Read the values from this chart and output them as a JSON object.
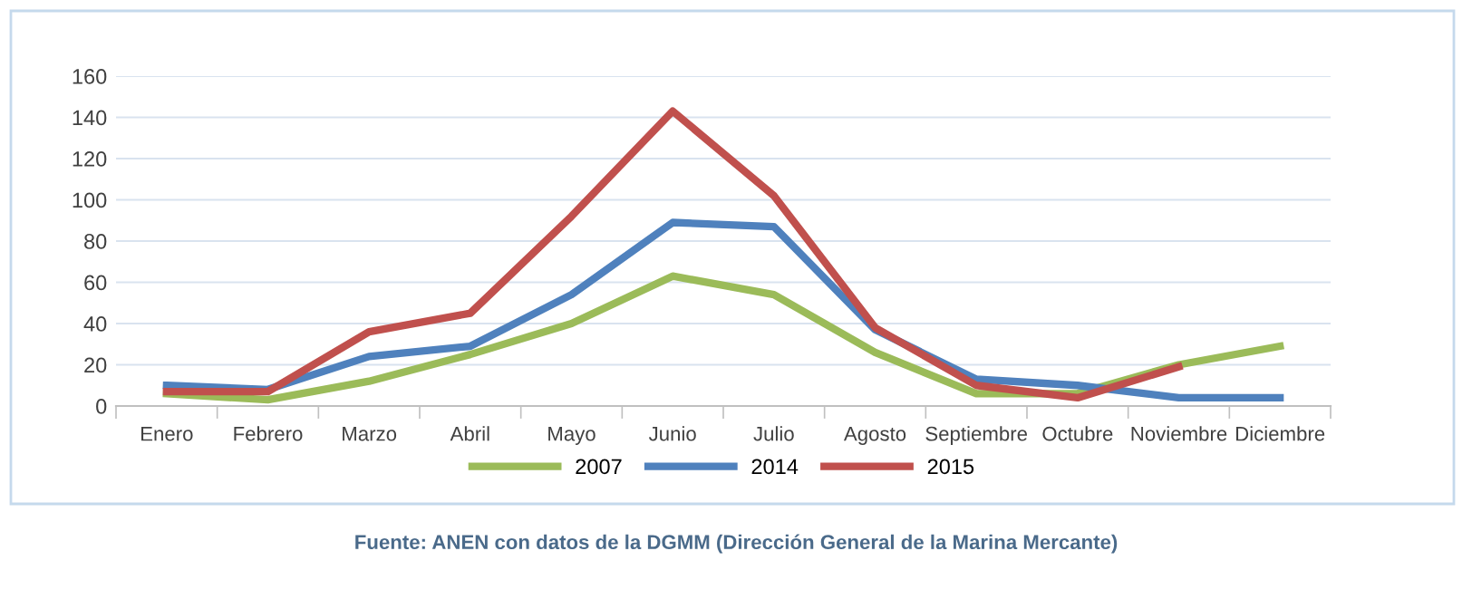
{
  "chart_data": {
    "type": "line",
    "categories": [
      "Enero",
      "Febrero",
      "Marzo",
      "Abril",
      "Mayo",
      "Junio",
      "Julio",
      "Agosto",
      "Septiembre",
      "Octubre",
      "Noviembre",
      "Diciembre"
    ],
    "series": [
      {
        "name": "2007",
        "color": "#9bbb59",
        "values": [
          6,
          3,
          12,
          25,
          40,
          63,
          54,
          26,
          6,
          6,
          20,
          29
        ]
      },
      {
        "name": "2014",
        "color": "#4f81bd",
        "values": [
          10,
          8,
          24,
          29,
          54,
          89,
          87,
          37,
          13,
          10,
          4,
          4
        ]
      },
      {
        "name": "2015",
        "color": "#c0504d",
        "values": [
          7,
          7,
          36,
          45,
          92,
          143,
          102,
          38,
          10,
          4,
          19,
          null
        ]
      }
    ],
    "ylim": [
      0,
      160
    ],
    "yticks": [
      0,
      20,
      40,
      60,
      80,
      100,
      120,
      140,
      160
    ],
    "grid": "y",
    "legend": "bottom",
    "marker": "none",
    "line_style": "solid",
    "annotations": [
      "Fuente: ANEN con datos de la DGMM (Dirección General de la Marina Mercante)"
    ]
  }
}
